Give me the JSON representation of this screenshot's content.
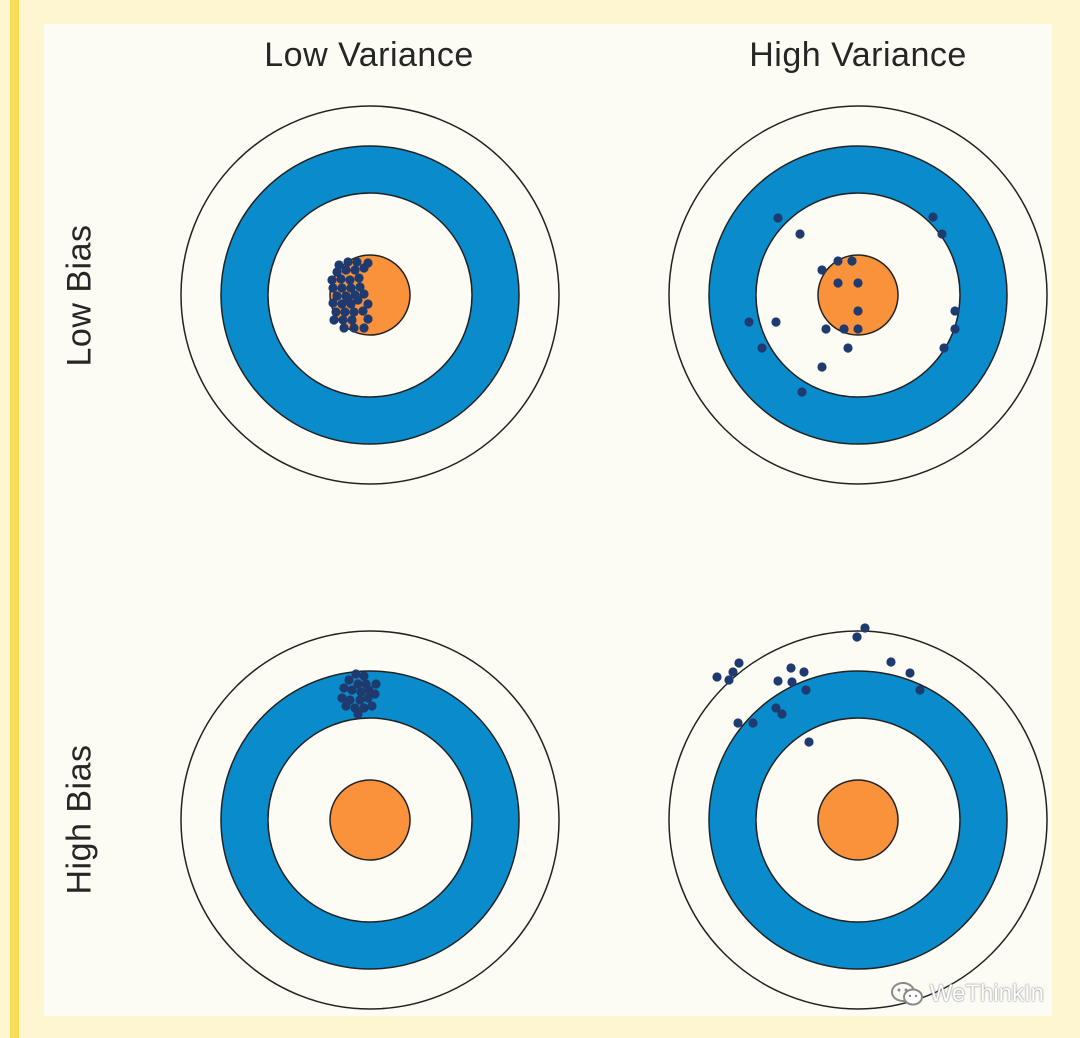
{
  "columns": [
    "Low Variance",
    "High Variance"
  ],
  "rows": [
    "Low Bias",
    "High Bias"
  ],
  "watermark": "WeThinkIn",
  "colors": {
    "outer_ring": "#fdfcf4",
    "blue_ring": "#0a8ccc",
    "bullseye": "#fa923c",
    "shot": "#1f3a6e",
    "stroke": "#222222"
  },
  "icons": [
    "wechat-icon"
  ]
}
